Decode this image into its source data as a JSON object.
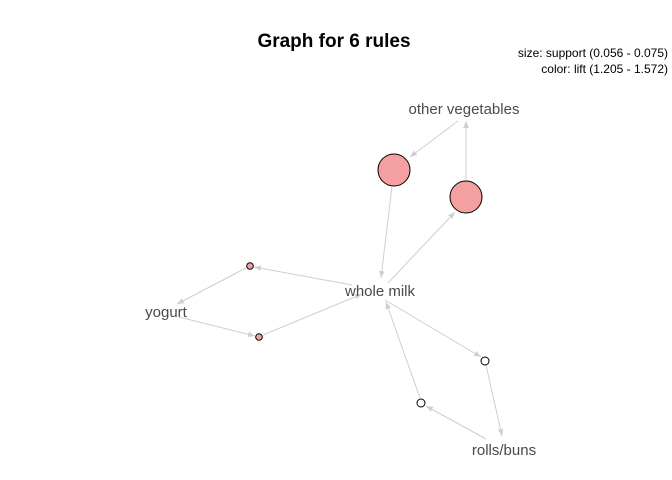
{
  "graph": {
    "title": "Graph for 6 rules",
    "legend_size": "size: support (0.056 - 0.075)",
    "legend_color": "color: lift (1.205 - 1.572)",
    "colors": {
      "high_lift": "#f4a0a0",
      "low_lift": "#ffffff",
      "edge": "#cfcfcf",
      "label": "#4a4a4a"
    },
    "items": [
      {
        "id": "other-vegetables",
        "label": "other vegetables"
      },
      {
        "id": "whole-milk",
        "label": "whole milk"
      },
      {
        "id": "yogurt",
        "label": "yogurt"
      },
      {
        "id": "rolls-buns",
        "label": "rolls/buns"
      }
    ],
    "rules": [
      {
        "id": "r1",
        "lhs": "other-vegetables",
        "rhs": "whole-milk"
      },
      {
        "id": "r2",
        "lhs": "whole-milk",
        "rhs": "other-vegetables"
      },
      {
        "id": "r3",
        "lhs": "whole-milk",
        "rhs": "yogurt"
      },
      {
        "id": "r4",
        "lhs": "yogurt",
        "rhs": "whole-milk"
      },
      {
        "id": "r5",
        "lhs": "whole-milk",
        "rhs": "rolls-buns"
      },
      {
        "id": "r6",
        "lhs": "rolls-buns",
        "rhs": "whole-milk"
      }
    ]
  }
}
